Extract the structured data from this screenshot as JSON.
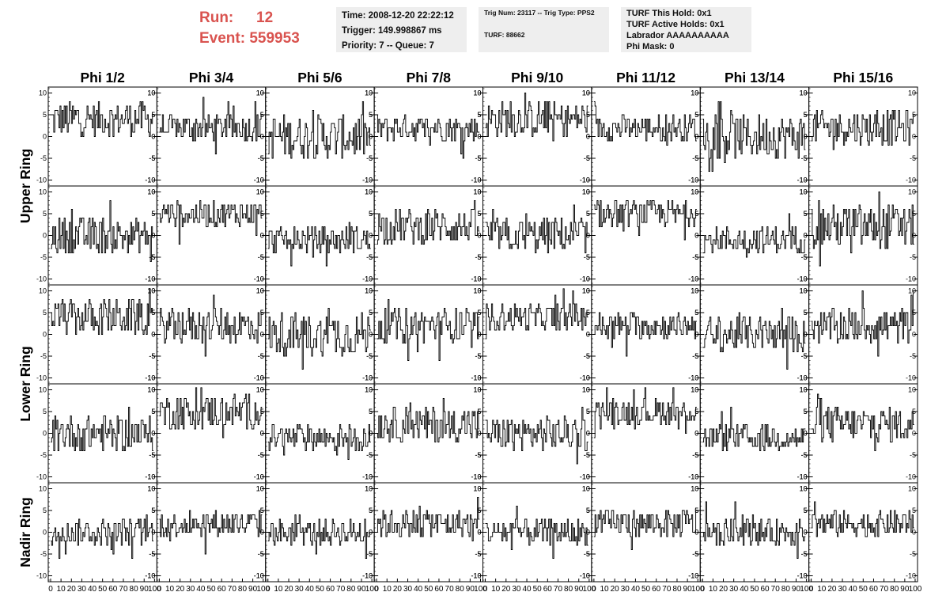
{
  "header": {
    "run_label": "Run:",
    "run_value": "12",
    "event_label": "Event:",
    "event_value": "559953",
    "accent_color": "#d9534f",
    "time_box": [
      "Time: 2008-12-20 22:22:12",
      "Trigger: 149.998867 ms",
      "Priority: 7 -- Queue: 7"
    ],
    "trig_box": [
      "Trig Num: 23117 -- Trig Type: PPS2",
      "TURF: 88662"
    ],
    "turf_box": [
      "TURF This Hold: 0x1",
      "TURF Active Holds: 0x1",
      "Labrador AAAAAAAAAA",
      "Phi Mask: 0"
    ]
  },
  "chart_data": {
    "type": "line",
    "columns": [
      "Phi 1/2",
      "Phi 3/4",
      "Phi 5/6",
      "Phi 7/8",
      "Phi 9/10",
      "Phi 11/12",
      "Phi 13/14",
      "Phi 15/16"
    ],
    "rows": [
      "Upper Ring",
      "Upper Ring",
      "Lower Ring",
      "Lower Ring",
      "Nadir Ring"
    ],
    "row_titles": [
      "Upper Ring",
      "Lower Ring",
      "Nadir Ring"
    ],
    "xlim": [
      0,
      100
    ],
    "ylim": [
      -11,
      11
    ],
    "x_ticks": [
      "0",
      "10",
      "20",
      "30",
      "40",
      "50",
      "60",
      "70",
      "80",
      "90",
      "100"
    ],
    "y_ticks": [
      "10",
      "5",
      "0",
      "-5",
      "-10"
    ],
    "baselines": [
      [
        4,
        2,
        0,
        2,
        4,
        2,
        0,
        2
      ],
      [
        0,
        5,
        -1,
        2,
        0,
        5,
        -1,
        2
      ],
      [
        4,
        2,
        0,
        2,
        4,
        2,
        0,
        2
      ],
      [
        0,
        5,
        -1,
        2,
        0,
        5,
        -1,
        2
      ],
      [
        0,
        2,
        0,
        2,
        0,
        2,
        0,
        2
      ]
    ],
    "amplitudes": [
      [
        4,
        3,
        5,
        3,
        4,
        3,
        5,
        4
      ],
      [
        4,
        3,
        3,
        4,
        4,
        3,
        3,
        5
      ],
      [
        4,
        4,
        5,
        4,
        3,
        3,
        4,
        4
      ],
      [
        4,
        4,
        3,
        4,
        4,
        3,
        3,
        4
      ],
      [
        3,
        3,
        3,
        3,
        3,
        3,
        3,
        3
      ]
    ]
  }
}
